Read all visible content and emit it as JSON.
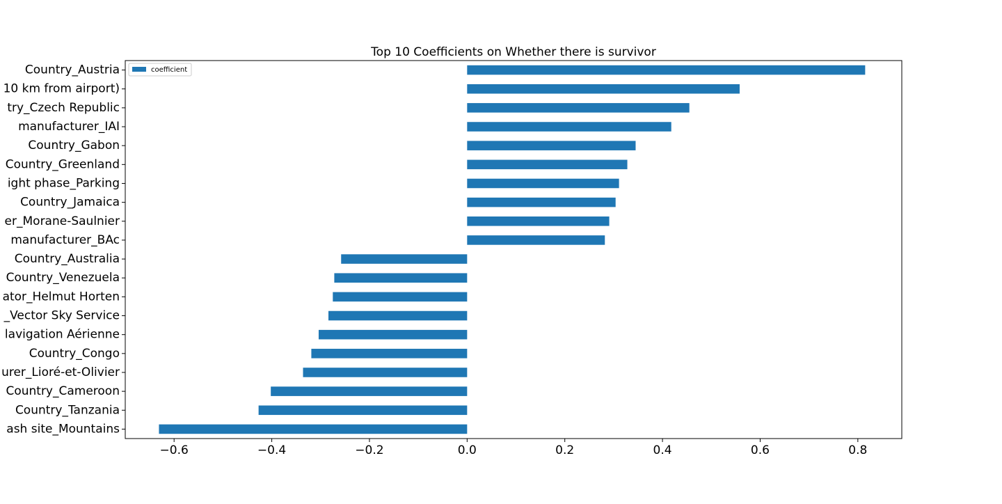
{
  "chart_data": {
    "type": "bar",
    "orientation": "horizontal",
    "title": "Top 10 Coefficients on Whether there is survivor",
    "xlabel": "",
    "ylabel": "",
    "xlim": [
      -0.7,
      0.89
    ],
    "xticks": [
      -0.6,
      -0.4,
      -0.2,
      0.0,
      0.2,
      0.4,
      0.6,
      0.8
    ],
    "xtick_labels": [
      "−0.6",
      "−0.4",
      "−0.2",
      "0.0",
      "0.2",
      "0.4",
      "0.6",
      "0.8"
    ],
    "grid": false,
    "legend": {
      "position": "top-left",
      "entries": [
        "coefficient"
      ]
    },
    "categories": [
      "Country_Austria",
      "10 km from airport)",
      "try_Czech Republic",
      "manufacturer_IAI",
      "Country_Gabon",
      "Country_Greenland",
      "ight phase_Parking",
      "Country_Jamaica",
      "er_Morane-Saulnier",
      "manufacturer_BAc",
      "Country_Australia",
      "Country_Venezuela",
      "ator_Helmut Horten",
      "_Vector Sky Service",
      "lavigation Aérienne",
      "Country_Congo",
      "urer_Lioré-et-Olivier",
      "Country_Cameroon",
      "Country_Tanzania",
      "ash site_Mountains"
    ],
    "series": [
      {
        "name": "coefficient",
        "color": "#1f77b4",
        "values": [
          0.815,
          0.558,
          0.455,
          0.418,
          0.345,
          0.328,
          0.311,
          0.304,
          0.291,
          0.282,
          -0.258,
          -0.272,
          -0.275,
          -0.284,
          -0.304,
          -0.319,
          -0.336,
          -0.402,
          -0.427,
          -0.631
        ]
      }
    ]
  }
}
